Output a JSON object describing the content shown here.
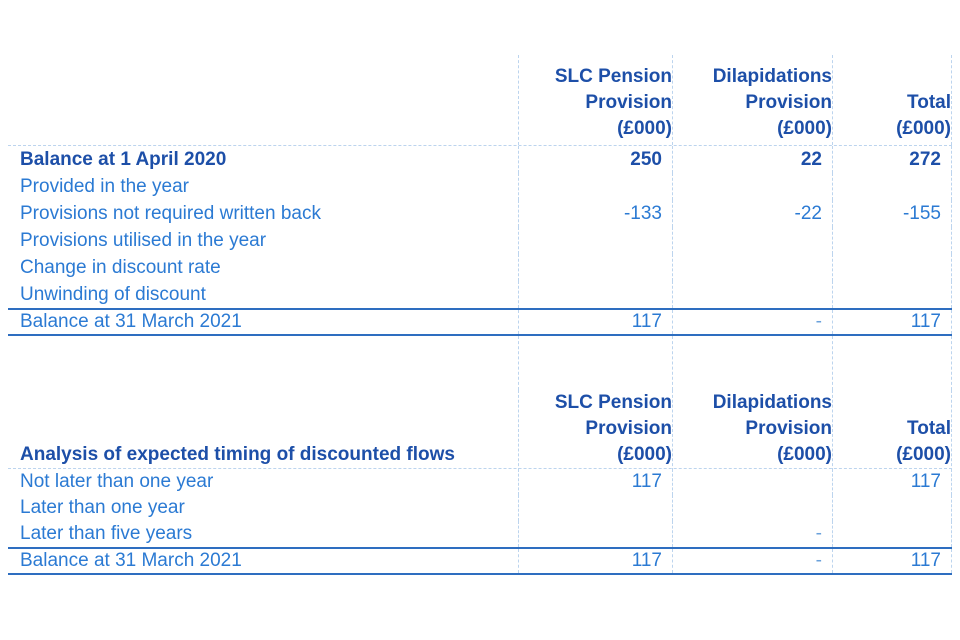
{
  "colors": {
    "regular_text": "#2b7ad3",
    "bold_text": "#1d4fa8",
    "solid_rule": "#2e6ec0",
    "dashed_grid": "#bcd4ee"
  },
  "columns": [
    {
      "lines": [
        "SLC Pension",
        "Provision",
        "(£000)"
      ]
    },
    {
      "lines": [
        "Dilapidations",
        "Provision",
        "(£000)"
      ]
    },
    {
      "lines": [
        "Total",
        "(£000)"
      ]
    }
  ],
  "table1": {
    "rows": [
      {
        "label": "Balance at 1 April 2020",
        "values": [
          "250",
          "22",
          "272"
        ]
      },
      {
        "label": "Provided in the year",
        "values": [
          "",
          "",
          ""
        ]
      },
      {
        "label": "Provisions not required written back",
        "values": [
          "-133",
          "-22",
          "-155"
        ]
      },
      {
        "label": "Provisions utilised in the year",
        "values": [
          "",
          "",
          ""
        ]
      },
      {
        "label": "Change in discount rate",
        "values": [
          "",
          "",
          ""
        ]
      },
      {
        "label": "Unwinding of discount",
        "values": [
          "",
          "",
          ""
        ]
      },
      {
        "label": "Balance at 31 March 2021",
        "values": [
          "117",
          "-",
          "117"
        ]
      }
    ]
  },
  "table2": {
    "section_label": "Analysis of expected timing of discounted flows",
    "rows": [
      {
        "label": "Not later than one year",
        "values": [
          "117",
          "",
          "117"
        ]
      },
      {
        "label": "Later than one year",
        "values": [
          "",
          "",
          ""
        ]
      },
      {
        "label": "Later than five years",
        "values": [
          "",
          "-",
          ""
        ]
      },
      {
        "label": "Balance at 31 March 2021",
        "values": [
          "117",
          "-",
          "117"
        ]
      }
    ]
  }
}
